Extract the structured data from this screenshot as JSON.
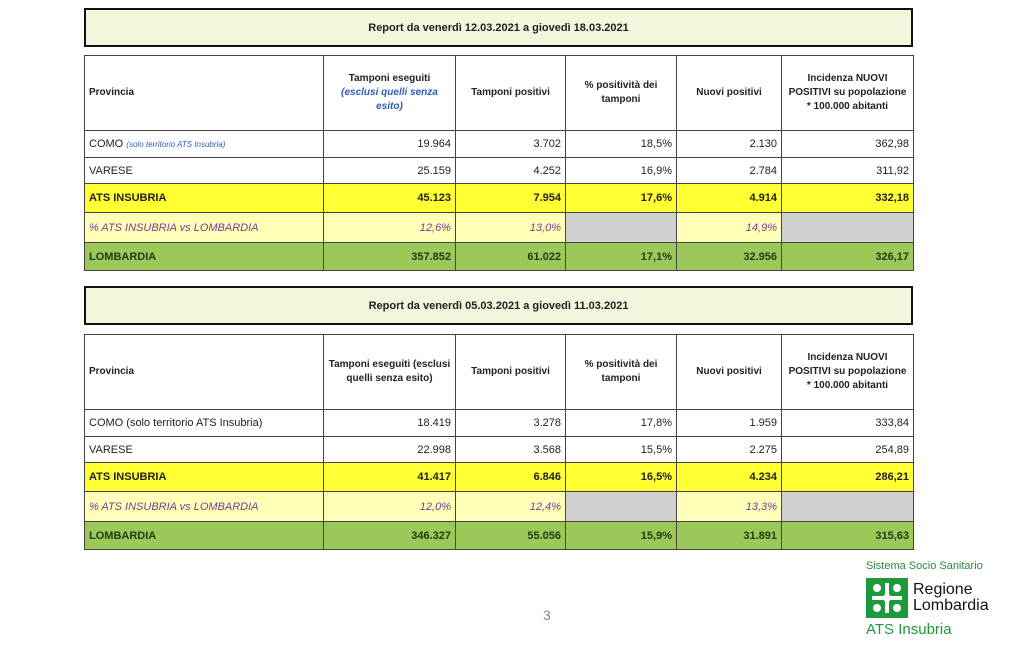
{
  "reports": [
    {
      "title": "Report da venerdì 12.03.2021 a giovedì 18.03.2021",
      "table": {
        "header": [
          {
            "text": "Provincia"
          },
          {
            "text": "Tamponi eseguiti",
            "note": "(esclusi quelli senza esito)"
          },
          {
            "text": "Tamponi positivi"
          },
          {
            "text": "% positività dei tamponi"
          },
          {
            "text": "Nuovi positivi"
          },
          {
            "text": "Incidenza NUOVI POSITIVI su popolazione * 100.000 abitanti"
          }
        ],
        "rows": [
          [
            {
              "text": "COMO",
              "note": "(solo territorio ATS Insubria)"
            },
            "19.964",
            "3.702",
            "18,5%",
            "2.130",
            "362,98"
          ],
          [
            "VARESE",
            "25.159",
            "4.252",
            "16,9%",
            "2.784",
            "311,92"
          ],
          [
            "ATS INSUBRIA",
            "45.123",
            "7.954",
            "17,6%",
            "4.914",
            "332,18"
          ],
          [
            "% ATS INSUBRIA vs LOMBARDIA",
            "12,6%",
            "13,0%",
            null,
            "14,9%",
            null
          ],
          [
            "LOMBARDIA",
            "357.852",
            "61.022",
            "17,1%",
            "32.956",
            "326,17"
          ]
        ]
      }
    },
    {
      "title": "Report da venerdì 05.03.2021 a giovedì 11.03.2021",
      "table": {
        "header": [
          {
            "text": "Provincia"
          },
          {
            "text": "Tamponi eseguiti (esclusi quelli senza esito)"
          },
          {
            "text": "Tamponi positivi"
          },
          {
            "text": "% positività dei tamponi"
          },
          {
            "text": "Nuovi positivi"
          },
          {
            "text": "Incidenza NUOVI POSITIVI su popolazione * 100.000 abitanti"
          }
        ],
        "rows": [
          [
            "COMO (solo territorio ATS Insubria)",
            "18.419",
            "3.278",
            "17,8%",
            "1.959",
            "333,84"
          ],
          [
            "VARESE",
            "22.998",
            "3.568",
            "15,5%",
            "2.275",
            "254,89"
          ],
          [
            "ATS INSUBRIA",
            "41.417",
            "6.846",
            "16,5%",
            "4.234",
            "286,21"
          ],
          [
            "% ATS INSUBRIA vs LOMBARDIA",
            "12,0%",
            "12,4%",
            null,
            "13,3%",
            null
          ],
          [
            "LOMBARDIA",
            "346.327",
            "55.056",
            "15,9%",
            "31.891",
            "315,63"
          ]
        ]
      }
    }
  ],
  "page_number": "3",
  "logo": {
    "system": "Sistema Socio Sanitario",
    "region_1": "Regione",
    "region_2": "Lombardia",
    "agency": "ATS Insubria"
  }
}
